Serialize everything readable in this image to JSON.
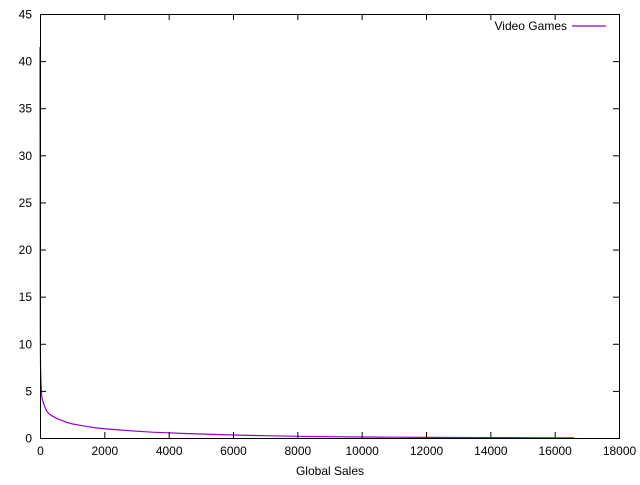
{
  "chart_data": {
    "type": "line",
    "title": "",
    "xlabel": "Global Sales",
    "ylabel": "",
    "xlim": [
      0,
      18000
    ],
    "ylim": [
      0,
      45
    ],
    "xticks": [
      0,
      2000,
      4000,
      6000,
      8000,
      10000,
      12000,
      14000,
      16000,
      18000
    ],
    "yticks": [
      0,
      5,
      10,
      15,
      20,
      25,
      30,
      35,
      40,
      45
    ],
    "grid": false,
    "legend": "top-right",
    "series": [
      {
        "name": "Video Games",
        "color": "#9400d3",
        "x": [
          0,
          1,
          2,
          3,
          5,
          8,
          12,
          20,
          30,
          45,
          60,
          80,
          100,
          130,
          170,
          220,
          300,
          400,
          500,
          650,
          800,
          1000,
          1250,
          1500,
          1800,
          2100,
          2500,
          3000,
          3500,
          4000,
          4500,
          5000,
          5500,
          6000,
          6500,
          7000,
          8000,
          9000,
          10000,
          11000,
          12000,
          13000,
          14000,
          15000,
          16000,
          16600
        ],
        "y": [
          41.5,
          35,
          29,
          23,
          16,
          11,
          9,
          7.2,
          6,
          4.9,
          4.3,
          4,
          3.8,
          3.5,
          3.1,
          2.8,
          2.5,
          2.3,
          2.1,
          1.9,
          1.7,
          1.5,
          1.35,
          1.2,
          1.05,
          0.95,
          0.85,
          0.72,
          0.62,
          0.55,
          0.48,
          0.42,
          0.37,
          0.32,
          0.28,
          0.24,
          0.18,
          0.14,
          0.11,
          0.08,
          0.06,
          0.05,
          0.04,
          0.03,
          0.02,
          0.01
        ]
      }
    ]
  }
}
